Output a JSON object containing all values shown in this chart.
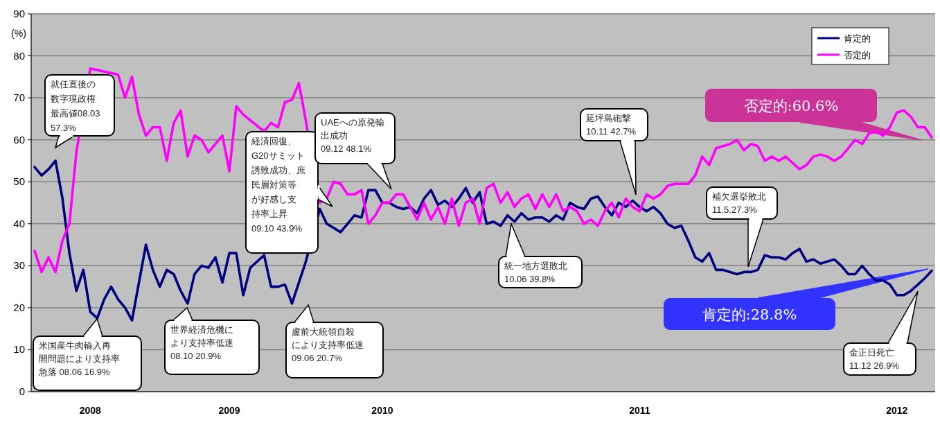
{
  "chart_data": {
    "type": "line",
    "ylabel": "(%)",
    "ylim": [
      0,
      90
    ],
    "yticks": [
      0,
      10,
      20,
      30,
      40,
      50,
      60,
      70,
      80,
      90
    ],
    "grid": "y",
    "legend": "top right",
    "categories": [
      null,
      null,
      null,
      null,
      null,
      null,
      null,
      null,
      "2008",
      null,
      null,
      null,
      null,
      null,
      null,
      null,
      null,
      null,
      null,
      null,
      null,
      null,
      null,
      null,
      null,
      null,
      null,
      null,
      "2009",
      null,
      null,
      null,
      null,
      null,
      null,
      null,
      null,
      null,
      null,
      null,
      null,
      null,
      null,
      null,
      null,
      null,
      null,
      null,
      null,
      null,
      "2010",
      null,
      null,
      null,
      null,
      null,
      null,
      null,
      null,
      null,
      null,
      null,
      null,
      null,
      null,
      null,
      null,
      null,
      null,
      null,
      null,
      null,
      null,
      null,
      null,
      null,
      null,
      null,
      null,
      null,
      null,
      null,
      null,
      null,
      null,
      null,
      null,
      "2011",
      null,
      null,
      null,
      null,
      null,
      null,
      null,
      null,
      null,
      null,
      null,
      null,
      null,
      null,
      null,
      null,
      null,
      null,
      null,
      null,
      null,
      null,
      null,
      null,
      null,
      null,
      null,
      null,
      null,
      null,
      null,
      null,
      null,
      null,
      null,
      null,
      "2012",
      null,
      null,
      null,
      null,
      null
    ],
    "series": [
      {
        "name": "肯定的",
        "color": "#000080",
        "values": [
          53.5,
          51.5,
          53,
          55,
          46,
          33,
          24,
          29,
          19,
          17.5,
          22,
          25,
          22,
          20,
          17,
          26,
          35,
          29,
          25,
          29,
          28,
          24,
          21,
          28,
          30,
          29.5,
          32,
          26,
          33,
          33,
          23,
          29.5,
          31,
          32.5,
          25,
          25,
          25.5,
          21,
          26,
          31,
          null,
          43.5,
          40,
          39,
          38,
          40,
          42,
          41.5,
          48,
          48,
          45,
          45,
          44,
          43.5,
          44,
          42.5,
          46,
          48,
          44.5,
          45.5,
          44,
          46,
          48.5,
          45,
          47.5,
          40,
          40.5,
          39.5,
          42,
          40.5,
          42.5,
          41,
          41.5,
          41.5,
          40.5,
          42,
          41,
          45,
          44,
          43.5,
          46,
          46.5,
          44,
          42,
          45,
          44,
          45.5,
          44,
          43,
          44,
          42.5,
          40,
          39,
          39.5,
          36,
          32,
          31,
          33,
          29,
          29,
          28.5,
          28,
          28.5,
          28.5,
          29,
          32.5,
          32,
          32,
          31.5,
          33,
          34,
          31,
          31.5,
          30.5,
          31,
          31.5,
          30,
          28,
          28,
          30,
          28,
          26.5,
          26.5,
          25.5,
          23,
          23,
          24,
          25.5,
          27,
          28.8
        ]
      },
      {
        "name": "否定的",
        "color": "#ff00ff",
        "values": [
          33.5,
          28.5,
          32,
          28.5,
          36,
          40,
          57,
          null,
          77,
          null,
          null,
          null,
          75.5,
          70,
          75,
          66,
          61,
          63,
          63,
          55,
          64,
          67,
          56,
          61,
          60,
          57,
          59,
          61,
          52.5,
          68,
          66,
          null,
          null,
          62,
          64,
          63,
          69,
          69.5,
          73.5,
          64.5,
          null,
          45,
          46,
          50,
          49.5,
          47,
          47,
          48,
          40,
          42,
          45,
          45,
          47,
          47,
          44,
          41,
          45,
          41,
          44,
          40,
          46,
          39.5,
          45,
          46,
          40,
          48.5,
          49.5,
          45,
          47.5,
          44,
          46,
          47,
          43.5,
          47,
          44,
          47,
          43,
          44,
          43,
          40,
          41,
          39.5,
          43,
          45,
          41.5,
          46,
          44,
          43,
          47,
          46,
          47,
          49,
          49.5,
          49.5,
          49.5,
          51.5,
          56,
          54,
          58,
          58.5,
          59,
          60,
          57.5,
          59,
          58.5,
          55,
          56,
          55,
          56,
          54.5,
          53,
          54,
          56,
          56.5,
          56,
          55,
          56,
          58,
          60,
          59,
          61.5,
          62,
          61,
          63,
          66.5,
          67,
          65.5,
          63,
          63,
          60.6
        ]
      }
    ],
    "annotations": [
      "就任直後の数字現政権最高値08.03 57.3%",
      "米国産牛肉輸入再開問題により支持率急落 08.06 16.9%",
      "世界経済危機により支持率低迷 08.10 20.9%",
      "経済回復、G20サミット誘致成功、庶民層対策等が好感し支持率上昇 09.10 43.9%",
      "盧前大統領自殺により支持率低迷 09.06 20.7%",
      "UAEへの原発輸出成功 09.12  48.1%",
      "統一地方選敗北 10.06 39.8%",
      "延坪島砲撃 10.11 42.7%",
      "補欠選挙敗北 11.5.27.3%",
      "金正日死亡 11.12  26.9%",
      "否定的:60.6%",
      "肯定的:28.8%"
    ]
  }
}
